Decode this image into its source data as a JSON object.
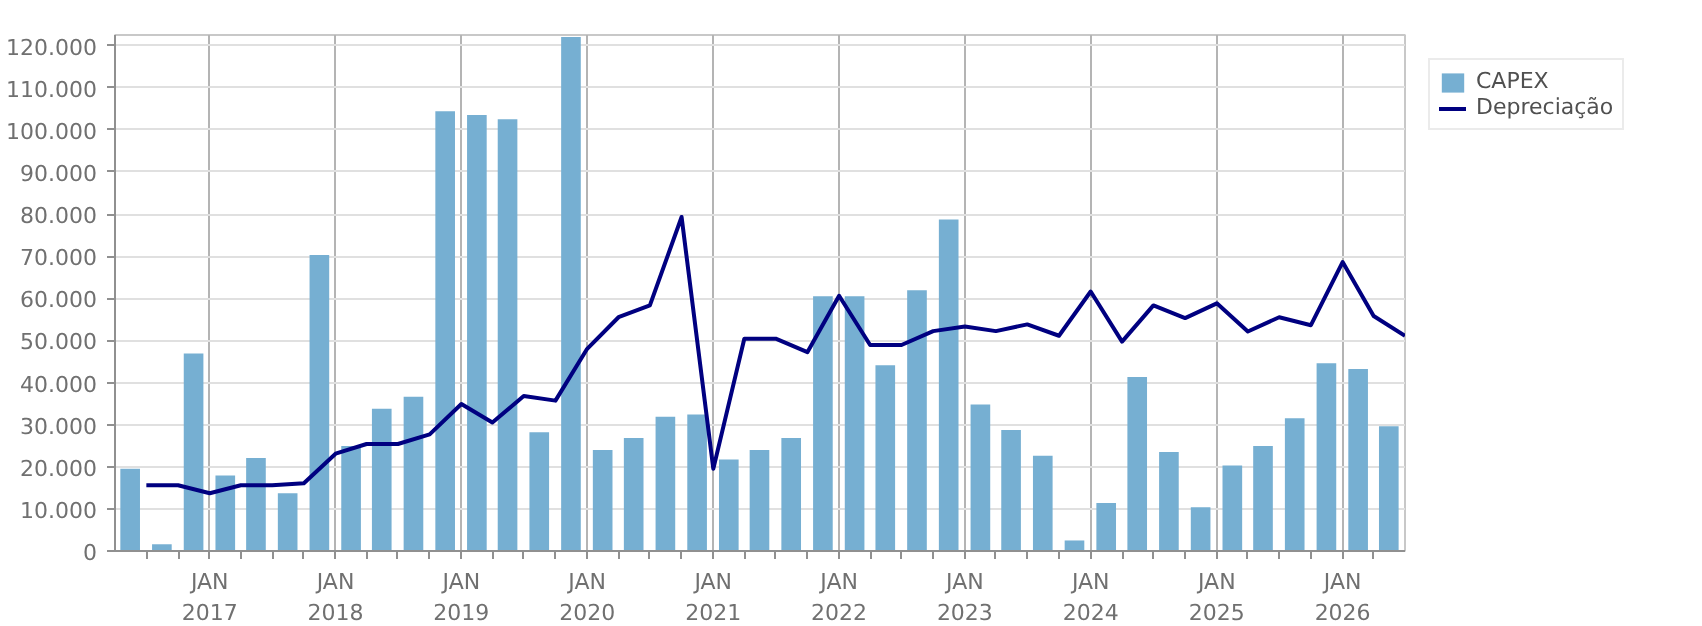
{
  "chart_data": {
    "type": "bar",
    "xlim": [
      "2016-04-01",
      "2026-07-01"
    ],
    "xticks": [
      {
        "value": "2016-07-01",
        "label": null
      },
      {
        "value": "2016-10-01",
        "label": null
      },
      {
        "value": "2017-01-01",
        "label": "JAN\n2017"
      },
      {
        "value": "2017-04-01",
        "label": null
      },
      {
        "value": "2017-07-01",
        "label": null
      },
      {
        "value": "2017-10-01",
        "label": null
      },
      {
        "value": "2018-01-01",
        "label": "JAN\n2018"
      },
      {
        "value": "2018-04-01",
        "label": null
      },
      {
        "value": "2018-07-01",
        "label": null
      },
      {
        "value": "2018-10-01",
        "label": null
      },
      {
        "value": "2019-01-01",
        "label": "JAN\n2019"
      },
      {
        "value": "2019-04-01",
        "label": null
      },
      {
        "value": "2019-07-01",
        "label": null
      },
      {
        "value": "2019-10-01",
        "label": null
      },
      {
        "value": "2020-01-01",
        "label": "JAN\n2020"
      },
      {
        "value": "2020-04-01",
        "label": null
      },
      {
        "value": "2020-07-01",
        "label": null
      },
      {
        "value": "2020-10-01",
        "label": null
      },
      {
        "value": "2021-01-01",
        "label": "JAN\n2021"
      },
      {
        "value": "2021-04-01",
        "label": null
      },
      {
        "value": "2021-07-01",
        "label": null
      },
      {
        "value": "2021-10-01",
        "label": null
      },
      {
        "value": "2022-01-01",
        "label": "JAN\n2022"
      },
      {
        "value": "2022-04-01",
        "label": null
      },
      {
        "value": "2022-07-01",
        "label": null
      },
      {
        "value": "2022-10-01",
        "label": null
      },
      {
        "value": "2023-01-01",
        "label": "JAN\n2023"
      },
      {
        "value": "2023-04-01",
        "label": null
      },
      {
        "value": "2023-07-01",
        "label": null
      },
      {
        "value": "2023-10-01",
        "label": null
      },
      {
        "value": "2024-01-01",
        "label": "JAN\n2024"
      },
      {
        "value": "2024-04-01",
        "label": null
      },
      {
        "value": "2024-07-01",
        "label": null
      },
      {
        "value": "2024-10-01",
        "label": null
      },
      {
        "value": "2025-01-01",
        "label": "JAN\n2025"
      },
      {
        "value": "2025-04-01",
        "label": null
      },
      {
        "value": "2025-07-01",
        "label": null
      },
      {
        "value": "2025-10-01",
        "label": null
      },
      {
        "value": "2026-01-01",
        "label": "JAN\n2026"
      },
      {
        "value": "2026-04-01",
        "label": null
      }
    ],
    "ylim": [
      0,
      122500
    ],
    "yticks": [
      {
        "value": 0,
        "label": "0"
      },
      {
        "value": 10000,
        "label": "10.000"
      },
      {
        "value": 20000,
        "label": "20.000"
      },
      {
        "value": 30000,
        "label": "30.000"
      },
      {
        "value": 40000,
        "label": "40.000"
      },
      {
        "value": 50000,
        "label": "50.000"
      },
      {
        "value": 60000,
        "label": "60.000"
      },
      {
        "value": 70000,
        "label": "70.000"
      },
      {
        "value": 80000,
        "label": "80.000"
      },
      {
        "value": 90000,
        "label": "90.000"
      },
      {
        "value": 100000,
        "label": "100.000"
      },
      {
        "value": 110000,
        "label": "110.000"
      },
      {
        "value": 120000,
        "label": "120.000"
      }
    ],
    "grid": true,
    "legend": "top right",
    "series": [
      {
        "name": "CAPEX",
        "color": "#76afd2",
        "x": [
          "2016-05-15",
          "2016-08-15",
          "2016-11-15",
          "2017-02-15",
          "2017-05-15",
          "2017-08-15",
          "2017-11-15",
          "2018-02-15",
          "2018-05-15",
          "2018-08-15",
          "2018-11-15",
          "2019-02-15",
          "2019-05-15",
          "2019-08-15",
          "2019-11-15",
          "2020-02-15",
          "2020-05-15",
          "2020-08-15",
          "2020-11-15",
          "2021-02-15",
          "2021-05-15",
          "2021-08-15",
          "2021-11-15",
          "2022-02-15",
          "2022-05-15",
          "2022-08-15",
          "2022-11-15",
          "2023-02-15",
          "2023-05-15",
          "2023-08-15",
          "2023-11-15",
          "2024-02-15",
          "2024-05-15",
          "2024-08-15",
          "2024-11-15",
          "2025-02-15",
          "2025-05-15",
          "2025-08-15",
          "2025-11-15",
          "2026-02-15",
          "2026-05-15"
        ],
        "values": [
          19500,
          1600,
          46900,
          17900,
          22100,
          13700,
          70300,
          24900,
          33800,
          36600,
          104400,
          103500,
          102500,
          28200,
          122000,
          24000,
          26800,
          31900,
          32400,
          21700,
          24000,
          26800,
          60500,
          60500,
          44100,
          61900,
          78700,
          34800,
          28700,
          22600,
          2500,
          11400,
          41300,
          23500,
          10400,
          20300,
          24900,
          31500,
          44600,
          43200,
          29600
        ]
      },
      {
        "name": "Depreciação",
        "type": "line",
        "color": "#000080",
        "line_style": "solid",
        "marker": "none",
        "x": [
          "2016-07-01",
          "2016-10-01",
          "2017-01-01",
          "2017-04-01",
          "2017-07-01",
          "2017-10-01",
          "2018-01-01",
          "2018-04-01",
          "2018-07-01",
          "2018-10-01",
          "2019-01-01",
          "2019-04-01",
          "2019-07-01",
          "2019-10-01",
          "2020-01-01",
          "2020-04-01",
          "2020-07-01",
          "2020-10-01",
          "2021-01-01",
          "2021-04-01",
          "2021-07-01",
          "2021-10-01",
          "2022-01-01",
          "2022-04-01",
          "2022-07-01",
          "2022-10-01",
          "2023-01-01",
          "2023-04-01",
          "2023-07-01",
          "2023-10-01",
          "2024-01-01",
          "2024-04-01",
          "2024-07-01",
          "2024-10-01",
          "2025-01-01",
          "2025-04-01",
          "2025-07-01",
          "2025-10-01",
          "2026-01-01",
          "2026-04-01",
          "2026-07-01"
        ],
        "values": [
          15600,
          15600,
          13700,
          15600,
          15600,
          16100,
          23100,
          25400,
          25400,
          27700,
          34900,
          30500,
          36800,
          35700,
          48000,
          55500,
          58300,
          79300,
          19500,
          50400,
          50400,
          47200,
          60600,
          48900,
          48900,
          52200,
          53300,
          52200,
          53800,
          51100,
          61600,
          49700,
          58300,
          55300,
          58800,
          52100,
          55500,
          53600,
          68600,
          55800,
          51100
        ]
      }
    ]
  }
}
